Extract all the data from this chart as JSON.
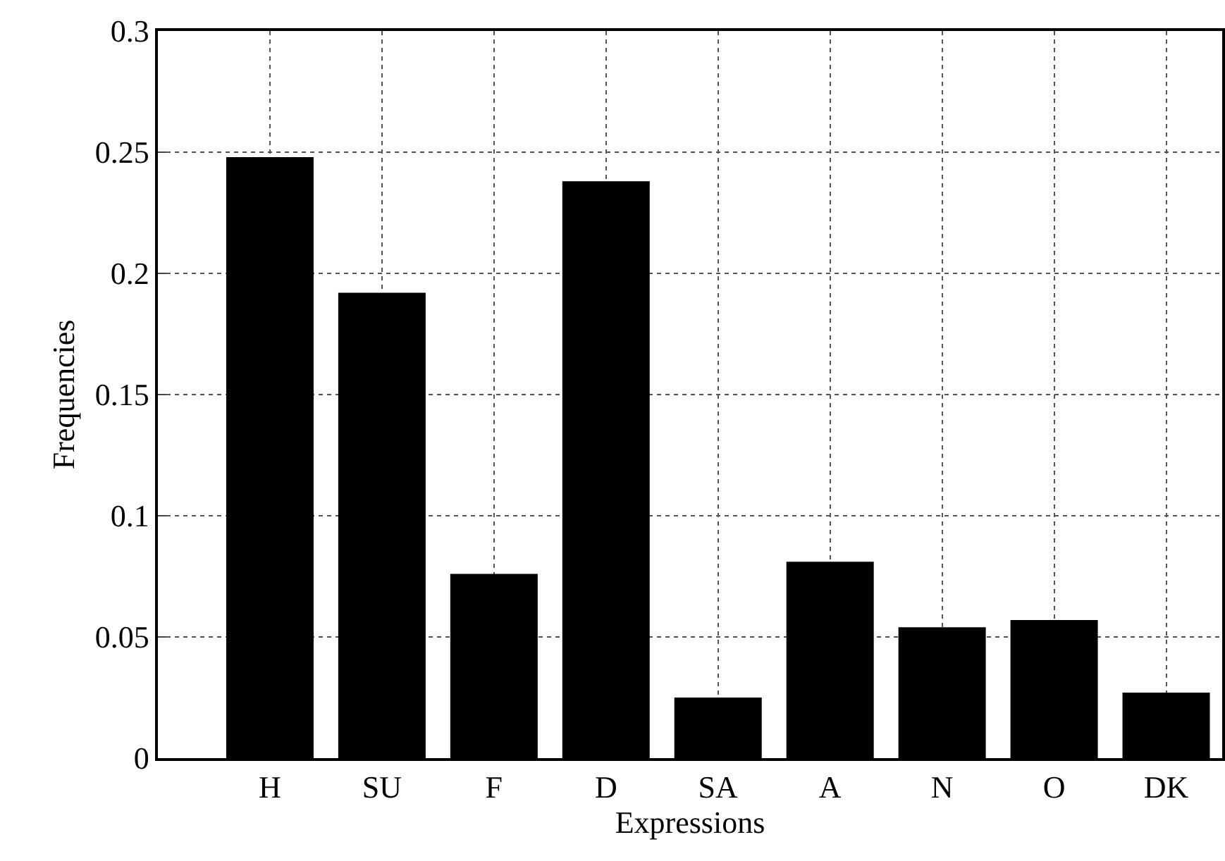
{
  "chart_data": {
    "type": "bar",
    "xlabel": "Expressions",
    "ylabel": "Frequencies",
    "categories": [
      "H",
      "SU",
      "F",
      "D",
      "SA",
      "A",
      "N",
      "O",
      "DK"
    ],
    "values": [
      0.248,
      0.192,
      0.076,
      0.238,
      0.025,
      0.081,
      0.054,
      0.057,
      0.027
    ],
    "color": "#000000",
    "ylim": [
      0,
      0.3
    ],
    "yticks": [
      0,
      0.05,
      0.1,
      0.15,
      0.2,
      0.25,
      0.3
    ],
    "grid": true
  }
}
